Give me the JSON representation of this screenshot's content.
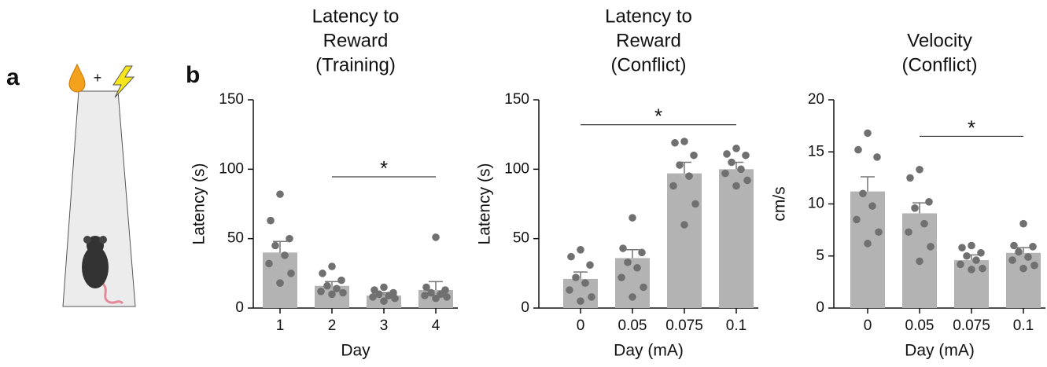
{
  "panel_labels": {
    "a": "a",
    "b": "b"
  },
  "illustration": {
    "symbol": "+"
  },
  "chart_data": [
    {
      "type": "bar",
      "title": [
        "Latency to",
        "Reward",
        "(Training)"
      ],
      "xlabel": "Day",
      "ylabel": "Latency (s)",
      "categories": [
        "1",
        "2",
        "3",
        "4"
      ],
      "values": [
        40,
        16,
        9,
        13
      ],
      "errors": [
        8,
        3,
        2,
        6
      ],
      "points": [
        [
          82,
          63,
          50,
          45,
          38,
          32,
          25,
          18
        ],
        [
          30,
          25,
          20,
          16,
          14,
          12,
          11,
          10
        ],
        [
          15,
          13,
          11,
          10,
          9,
          8,
          7,
          5
        ],
        [
          51,
          15,
          13,
          11,
          10,
          9,
          8,
          7
        ]
      ],
      "color": "#b3b3b3",
      "point_color": "#707070",
      "ylim": [
        0,
        150
      ],
      "yticks": [
        0,
        50,
        100,
        150
      ],
      "significance": {
        "label": "*",
        "y": 94.5,
        "span": [
          "2",
          "4"
        ]
      }
    },
    {
      "type": "bar",
      "title": [
        "Latency to",
        "Reward",
        "(Conflict)"
      ],
      "xlabel": "Day (mA)",
      "ylabel": "Latency (s)",
      "categories": [
        "0",
        "0.05",
        "0.075",
        "0.1"
      ],
      "values": [
        21,
        36,
        97,
        100
      ],
      "errors": [
        5,
        6,
        8,
        5
      ],
      "points": [
        [
          42,
          37,
          31,
          22,
          18,
          13,
          8,
          5
        ],
        [
          65,
          43,
          40,
          33,
          29,
          22,
          15,
          8
        ],
        [
          120,
          119,
          110,
          103,
          95,
          88,
          75,
          60
        ],
        [
          115,
          111,
          110,
          105,
          100,
          97,
          92,
          88
        ]
      ],
      "color": "#b3b3b3",
      "point_color": "#707070",
      "ylim": [
        0,
        150
      ],
      "yticks": [
        0,
        50,
        100,
        150
      ],
      "significance": {
        "label": "*",
        "y": 132,
        "span": [
          "0",
          "0.1"
        ]
      }
    },
    {
      "type": "bar",
      "title": [
        "Velocity",
        "(Conflict)"
      ],
      "xlabel": "Day (mA)",
      "ylabel": "cm/s",
      "categories": [
        "0",
        "0.05",
        "0.075",
        "0.1"
      ],
      "values": [
        11.2,
        9.1,
        4.6,
        5.3
      ],
      "errors": [
        1.4,
        1.0,
        0.5,
        0.5
      ],
      "points": [
        [
          16.8,
          15.2,
          14.5,
          11,
          9.8,
          8.5,
          7.3,
          6.2
        ],
        [
          13.3,
          12.5,
          10.2,
          9.6,
          8.1,
          7.3,
          5.9,
          4.5
        ],
        [
          6.0,
          5.8,
          5.3,
          5.0,
          4.6,
          4.2,
          3.8,
          3.7
        ],
        [
          8.1,
          6.0,
          5.9,
          5.4,
          4.9,
          4.6,
          4.1,
          3.8
        ]
      ],
      "color": "#b3b3b3",
      "point_color": "#707070",
      "ylim": [
        0,
        20
      ],
      "yticks": [
        0,
        5,
        10,
        15,
        20
      ],
      "significance": {
        "label": "*",
        "y": 16.5,
        "span": [
          "0.05",
          "0.1"
        ]
      }
    }
  ]
}
